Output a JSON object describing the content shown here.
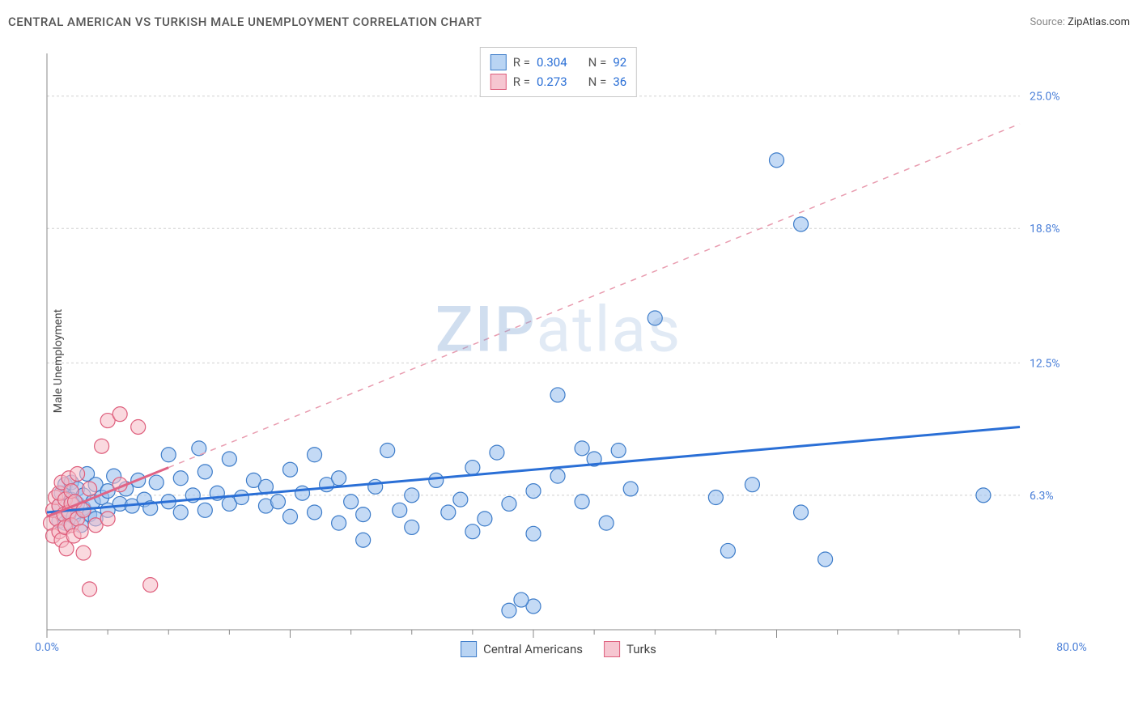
{
  "title": "CENTRAL AMERICAN VS TURKISH MALE UNEMPLOYMENT CORRELATION CHART",
  "source": {
    "label": "Source:",
    "value": "ZipAtlas.com"
  },
  "y_axis_label": "Male Unemployment",
  "watermark": {
    "a": "ZIP",
    "b": "atlas"
  },
  "chart": {
    "type": "scatter",
    "background_color": "#ffffff",
    "grid_color": "#d0d0d0",
    "axis_color": "#888888",
    "tick_label_color": "#4a7fd8",
    "xlim": [
      0,
      80
    ],
    "ylim": [
      0,
      27
    ],
    "marker_radius": 9,
    "x_ticks": {
      "major": [
        0,
        20,
        40,
        60,
        80
      ],
      "labels": [
        {
          "pos": 0,
          "text": "0.0%"
        },
        {
          "pos": 80,
          "text": "80.0%"
        }
      ],
      "minor_step": 5
    },
    "y_ticks": {
      "labels": [
        {
          "pos": 6.3,
          "text": "6.3%"
        },
        {
          "pos": 12.5,
          "text": "12.5%"
        },
        {
          "pos": 18.8,
          "text": "18.8%"
        },
        {
          "pos": 25.0,
          "text": "25.0%"
        }
      ]
    },
    "series": {
      "blue": {
        "name": "Central Americans",
        "fill": "#9cc2ef",
        "stroke": "#3d7cc9",
        "trend_color": "#2a6fd6",
        "trend_width": 3,
        "trend": {
          "x1": 0,
          "y1": 5.5,
          "x2": 80,
          "y2": 9.5
        },
        "R": "0.304",
        "N": "92",
        "points": [
          [
            1,
            5.1
          ],
          [
            1,
            5.8
          ],
          [
            1.2,
            6.4
          ],
          [
            1.5,
            5.0
          ],
          [
            1.5,
            6.8
          ],
          [
            1.8,
            5.4
          ],
          [
            2,
            6.1
          ],
          [
            2,
            6.9
          ],
          [
            2.2,
            5.3
          ],
          [
            2.5,
            5.9
          ],
          [
            2.5,
            6.6
          ],
          [
            2.8,
            4.9
          ],
          [
            3,
            5.7
          ],
          [
            3,
            6.3
          ],
          [
            3.3,
            7.3
          ],
          [
            3.5,
            5.4
          ],
          [
            3.8,
            6.0
          ],
          [
            4,
            6.8
          ],
          [
            4,
            5.2
          ],
          [
            4.5,
            6.2
          ],
          [
            5,
            6.5
          ],
          [
            5,
            5.6
          ],
          [
            5.5,
            7.2
          ],
          [
            6,
            5.9
          ],
          [
            6.5,
            6.6
          ],
          [
            7,
            5.8
          ],
          [
            7.5,
            7.0
          ],
          [
            8,
            6.1
          ],
          [
            8.5,
            5.7
          ],
          [
            9,
            6.9
          ],
          [
            10,
            6.0
          ],
          [
            10,
            8.2
          ],
          [
            11,
            5.5
          ],
          [
            11,
            7.1
          ],
          [
            12,
            6.3
          ],
          [
            12.5,
            8.5
          ],
          [
            13,
            5.6
          ],
          [
            13,
            7.4
          ],
          [
            14,
            6.4
          ],
          [
            15,
            5.9
          ],
          [
            15,
            8.0
          ],
          [
            16,
            6.2
          ],
          [
            17,
            7.0
          ],
          [
            18,
            5.8
          ],
          [
            18,
            6.7
          ],
          [
            19,
            6.0
          ],
          [
            20,
            7.5
          ],
          [
            20,
            5.3
          ],
          [
            21,
            6.4
          ],
          [
            22,
            5.5
          ],
          [
            22,
            8.2
          ],
          [
            23,
            6.8
          ],
          [
            24,
            5.0
          ],
          [
            24,
            7.1
          ],
          [
            25,
            6.0
          ],
          [
            26,
            5.4
          ],
          [
            26,
            4.2
          ],
          [
            27,
            6.7
          ],
          [
            28,
            8.4
          ],
          [
            29,
            5.6
          ],
          [
            30,
            6.3
          ],
          [
            30,
            4.8
          ],
          [
            32,
            7.0
          ],
          [
            33,
            5.5
          ],
          [
            34,
            6.1
          ],
          [
            35,
            4.6
          ],
          [
            35,
            7.6
          ],
          [
            36,
            5.2
          ],
          [
            37,
            8.3
          ],
          [
            38,
            5.9
          ],
          [
            38,
            0.9
          ],
          [
            40,
            6.5
          ],
          [
            40,
            4.5
          ],
          [
            40,
            1.1
          ],
          [
            42,
            7.2
          ],
          [
            42,
            11.0
          ],
          [
            44,
            6.0
          ],
          [
            44,
            8.5
          ],
          [
            45,
            8.0
          ],
          [
            46,
            5.0
          ],
          [
            47,
            8.4
          ],
          [
            48,
            6.6
          ],
          [
            39,
            1.4
          ],
          [
            50,
            14.6
          ],
          [
            55,
            6.2
          ],
          [
            56,
            3.7
          ],
          [
            58,
            6.8
          ],
          [
            60,
            22.0
          ],
          [
            62,
            5.5
          ],
          [
            62,
            19.0
          ],
          [
            64,
            3.3
          ],
          [
            77,
            6.3
          ]
        ]
      },
      "pink": {
        "name": "Turks",
        "fill": "#f5b9c4",
        "stroke": "#de5e7c",
        "trend_color": "#e06385",
        "trend_width": 3,
        "trend_solid": {
          "x1": 0,
          "y1": 5.3,
          "x2": 10,
          "y2": 7.6
        },
        "trend_dash": {
          "x1": 10,
          "y1": 7.6,
          "x2": 80,
          "y2": 23.7
        },
        "R": "0.273",
        "N": "36",
        "points": [
          [
            0.3,
            5.0
          ],
          [
            0.5,
            5.6
          ],
          [
            0.5,
            4.4
          ],
          [
            0.7,
            6.2
          ],
          [
            0.8,
            5.2
          ],
          [
            1,
            4.6
          ],
          [
            1,
            5.8
          ],
          [
            1,
            6.4
          ],
          [
            1.2,
            4.2
          ],
          [
            1.2,
            6.9
          ],
          [
            1.4,
            5.4
          ],
          [
            1.5,
            4.8
          ],
          [
            1.5,
            6.1
          ],
          [
            1.6,
            3.8
          ],
          [
            1.8,
            5.5
          ],
          [
            1.8,
            7.1
          ],
          [
            2,
            4.9
          ],
          [
            2,
            5.9
          ],
          [
            2,
            6.5
          ],
          [
            2.2,
            4.4
          ],
          [
            2.3,
            6.0
          ],
          [
            2.5,
            5.2
          ],
          [
            2.5,
            7.3
          ],
          [
            2.8,
            4.6
          ],
          [
            3,
            5.6
          ],
          [
            3,
            3.6
          ],
          [
            3.5,
            6.6
          ],
          [
            3.5,
            1.9
          ],
          [
            4,
            4.9
          ],
          [
            4.5,
            8.6
          ],
          [
            5,
            9.8
          ],
          [
            5,
            5.2
          ],
          [
            6,
            6.8
          ],
          [
            6,
            10.1
          ],
          [
            7.5,
            9.5
          ],
          [
            8.5,
            2.1
          ]
        ]
      }
    }
  },
  "corr_legend": {
    "rows": [
      {
        "swatch": "blue",
        "r_label": "R =",
        "r_val": "0.304",
        "n_label": "N =",
        "n_val": "92"
      },
      {
        "swatch": "pink",
        "r_label": "R =",
        "r_val": "0.273",
        "n_label": "N =",
        "n_val": "36"
      }
    ]
  },
  "series_legend": {
    "items": [
      {
        "swatch": "blue",
        "label": "Central Americans"
      },
      {
        "swatch": "pink",
        "label": "Turks"
      }
    ]
  }
}
